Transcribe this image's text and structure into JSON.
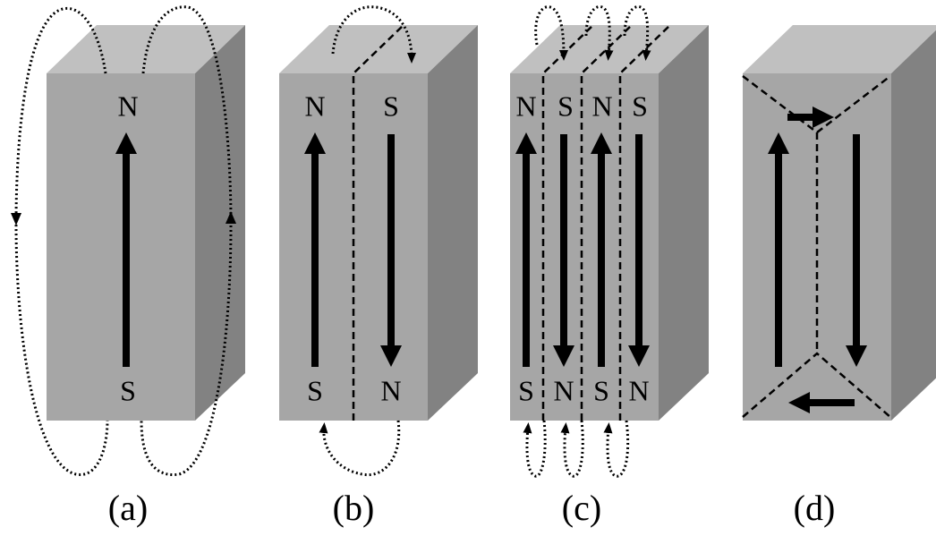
{
  "blocks": [
    {
      "caption": "(a)",
      "top_labels": [
        "N"
      ],
      "bottom_labels": [
        "S"
      ]
    },
    {
      "caption": "(b)",
      "top_labels": [
        "N",
        "S"
      ],
      "bottom_labels": [
        "S",
        "N"
      ]
    },
    {
      "caption": "(c)",
      "top_labels": [
        "N",
        "S",
        "N",
        "S"
      ],
      "bottom_labels": [
        "S",
        "N",
        "S",
        "N"
      ]
    },
    {
      "caption": "(d)",
      "top_labels": [],
      "bottom_labels": []
    }
  ]
}
